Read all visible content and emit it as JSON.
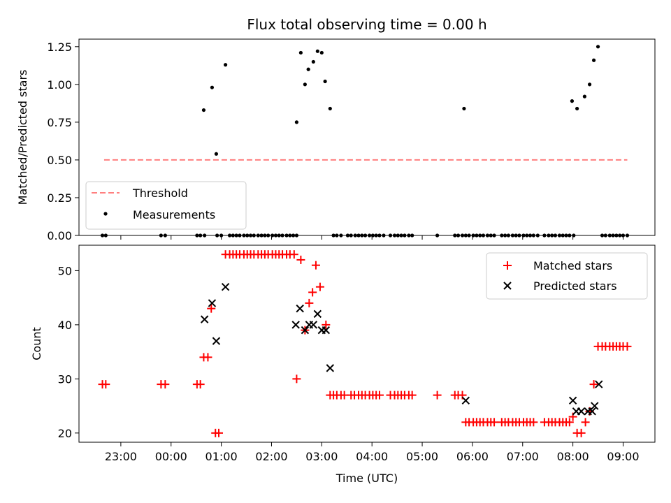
{
  "chart_data": [
    {
      "type": "scatter",
      "title": "Flux total observing time = 0.00 h",
      "xlabel": "",
      "ylabel": "Matched/Predicted stars",
      "xlim": [
        "22:10",
        "09:38"
      ],
      "ylim": [
        0.0,
        1.3
      ],
      "yticks": [
        "0.00",
        "0.25",
        "0.50",
        "0.75",
        "1.00",
        "1.25"
      ],
      "ytick_values": [
        0.0,
        0.25,
        0.5,
        0.75,
        1.0,
        1.25
      ],
      "legend_position": "lower-left",
      "threshold": {
        "name": "Threshold",
        "color": "#ff7f7f",
        "y": 0.5,
        "x": [
          "22:40",
          "09:05"
        ]
      },
      "series": [
        {
          "name": "Measurements",
          "color": "#000000",
          "points": [
            [
              "22:38",
              0.0
            ],
            [
              "22:42",
              0.0
            ],
            [
              "23:48",
              0.0
            ],
            [
              "23:53",
              0.0
            ],
            [
              "00:31",
              0.0
            ],
            [
              "00:35",
              0.0
            ],
            [
              "00:40",
              0.0
            ],
            [
              "00:39",
              0.83
            ],
            [
              "00:49",
              0.98
            ],
            [
              "00:54",
              0.54
            ],
            [
              "01:05",
              1.13
            ],
            [
              "00:55",
              0.0
            ],
            [
              "01:00",
              0.0
            ],
            [
              "01:10",
              0.0
            ],
            [
              "01:14",
              0.0
            ],
            [
              "01:18",
              0.0
            ],
            [
              "01:22",
              0.0
            ],
            [
              "01:27",
              0.0
            ],
            [
              "01:31",
              0.0
            ],
            [
              "01:35",
              0.0
            ],
            [
              "01:39",
              0.0
            ],
            [
              "01:44",
              0.0
            ],
            [
              "01:48",
              0.0
            ],
            [
              "01:52",
              0.0
            ],
            [
              "01:56",
              0.0
            ],
            [
              "02:01",
              0.0
            ],
            [
              "02:05",
              0.0
            ],
            [
              "02:09",
              0.0
            ],
            [
              "02:13",
              0.0
            ],
            [
              "02:18",
              0.0
            ],
            [
              "02:22",
              0.0
            ],
            [
              "02:26",
              0.0
            ],
            [
              "02:30",
              0.0
            ],
            [
              "02:30",
              0.75
            ],
            [
              "02:35",
              1.21
            ],
            [
              "02:40",
              1.0
            ],
            [
              "02:44",
              1.1
            ],
            [
              "02:50",
              1.15
            ],
            [
              "02:55",
              1.22
            ],
            [
              "03:00",
              1.21
            ],
            [
              "03:04",
              1.02
            ],
            [
              "03:10",
              0.84
            ],
            [
              "03:14",
              0.0
            ],
            [
              "03:18",
              0.0
            ],
            [
              "03:23",
              0.0
            ],
            [
              "03:31",
              0.0
            ],
            [
              "03:35",
              0.0
            ],
            [
              "03:40",
              0.0
            ],
            [
              "03:44",
              0.0
            ],
            [
              "03:48",
              0.0
            ],
            [
              "03:52",
              0.0
            ],
            [
              "03:57",
              0.0
            ],
            [
              "04:01",
              0.0
            ],
            [
              "04:05",
              0.0
            ],
            [
              "04:09",
              0.0
            ],
            [
              "04:14",
              0.0
            ],
            [
              "04:22",
              0.0
            ],
            [
              "04:27",
              0.0
            ],
            [
              "04:31",
              0.0
            ],
            [
              "04:35",
              0.0
            ],
            [
              "04:39",
              0.0
            ],
            [
              "04:44",
              0.0
            ],
            [
              "04:48",
              0.0
            ],
            [
              "05:18",
              0.0
            ],
            [
              "05:39",
              0.0
            ],
            [
              "05:43",
              0.0
            ],
            [
              "05:48",
              0.0
            ],
            [
              "05:50",
              0.84
            ],
            [
              "05:52",
              0.0
            ],
            [
              "05:56",
              0.0
            ],
            [
              "06:01",
              0.0
            ],
            [
              "06:05",
              0.0
            ],
            [
              "06:09",
              0.0
            ],
            [
              "06:13",
              0.0
            ],
            [
              "06:18",
              0.0
            ],
            [
              "06:22",
              0.0
            ],
            [
              "06:26",
              0.0
            ],
            [
              "06:35",
              0.0
            ],
            [
              "06:39",
              0.0
            ],
            [
              "06:43",
              0.0
            ],
            [
              "06:48",
              0.0
            ],
            [
              "06:52",
              0.0
            ],
            [
              "06:56",
              0.0
            ],
            [
              "07:01",
              0.0
            ],
            [
              "07:05",
              0.0
            ],
            [
              "07:09",
              0.0
            ],
            [
              "07:13",
              0.0
            ],
            [
              "07:18",
              0.0
            ],
            [
              "07:26",
              0.0
            ],
            [
              "07:31",
              0.0
            ],
            [
              "07:35",
              0.0
            ],
            [
              "07:39",
              0.0
            ],
            [
              "07:44",
              0.0
            ],
            [
              "07:48",
              0.0
            ],
            [
              "07:52",
              0.0
            ],
            [
              "07:56",
              0.0
            ],
            [
              "08:01",
              0.0
            ],
            [
              "07:59",
              0.89
            ],
            [
              "08:05",
              0.84
            ],
            [
              "08:14",
              0.92
            ],
            [
              "08:20",
              1.0
            ],
            [
              "08:25",
              1.16
            ],
            [
              "08:30",
              1.25
            ],
            [
              "08:35",
              0.0
            ],
            [
              "08:39",
              0.0
            ],
            [
              "08:44",
              0.0
            ],
            [
              "08:48",
              0.0
            ],
            [
              "08:52",
              0.0
            ],
            [
              "08:56",
              0.0
            ],
            [
              "09:00",
              0.0
            ],
            [
              "09:05",
              0.0
            ]
          ]
        }
      ]
    },
    {
      "type": "scatter",
      "title": "",
      "xlabel": "Time (UTC)",
      "ylabel": "Count",
      "xlim": [
        "22:10",
        "09:38"
      ],
      "ylim": [
        18.3,
        54.7
      ],
      "yticks": [
        "20",
        "30",
        "40",
        "50"
      ],
      "ytick_values": [
        20,
        30,
        40,
        50
      ],
      "xticks": [
        "23:00",
        "00:00",
        "01:00",
        "02:00",
        "03:00",
        "04:00",
        "05:00",
        "06:00",
        "07:00",
        "08:00",
        "09:00"
      ],
      "legend_position": "upper-right",
      "series": [
        {
          "name": "Matched stars",
          "color": "#ff0000",
          "marker": "plus",
          "points": [
            [
              "22:38",
              29
            ],
            [
              "22:42",
              29
            ],
            [
              "23:48",
              29
            ],
            [
              "23:53",
              29
            ],
            [
              "00:31",
              29
            ],
            [
              "00:35",
              29
            ],
            [
              "00:39",
              34
            ],
            [
              "00:44",
              34
            ],
            [
              "00:48",
              43
            ],
            [
              "00:53",
              20
            ],
            [
              "00:57",
              20
            ],
            [
              "01:05",
              53
            ],
            [
              "01:10",
              53
            ],
            [
              "01:14",
              53
            ],
            [
              "01:18",
              53
            ],
            [
              "01:22",
              53
            ],
            [
              "01:27",
              53
            ],
            [
              "01:31",
              53
            ],
            [
              "01:35",
              53
            ],
            [
              "01:39",
              53
            ],
            [
              "01:44",
              53
            ],
            [
              "01:48",
              53
            ],
            [
              "01:52",
              53
            ],
            [
              "01:56",
              53
            ],
            [
              "02:01",
              53
            ],
            [
              "02:05",
              53
            ],
            [
              "02:09",
              53
            ],
            [
              "02:13",
              53
            ],
            [
              "02:18",
              53
            ],
            [
              "02:22",
              53
            ],
            [
              "02:27",
              53
            ],
            [
              "02:30",
              30
            ],
            [
              "02:35",
              52
            ],
            [
              "02:40",
              39
            ],
            [
              "02:45",
              44
            ],
            [
              "02:49",
              46
            ],
            [
              "02:53",
              51
            ],
            [
              "02:58",
              47
            ],
            [
              "03:05",
              40
            ],
            [
              "03:10",
              27
            ],
            [
              "03:14",
              27
            ],
            [
              "03:18",
              27
            ],
            [
              "03:23",
              27
            ],
            [
              "03:27",
              27
            ],
            [
              "03:35",
              27
            ],
            [
              "03:39",
              27
            ],
            [
              "03:44",
              27
            ],
            [
              "03:48",
              27
            ],
            [
              "03:52",
              27
            ],
            [
              "03:57",
              27
            ],
            [
              "04:01",
              27
            ],
            [
              "04:05",
              27
            ],
            [
              "04:09",
              27
            ],
            [
              "04:22",
              27
            ],
            [
              "04:27",
              27
            ],
            [
              "04:31",
              27
            ],
            [
              "04:35",
              27
            ],
            [
              "04:39",
              27
            ],
            [
              "04:44",
              27
            ],
            [
              "04:48",
              27
            ],
            [
              "05:18",
              27
            ],
            [
              "05:39",
              27
            ],
            [
              "05:43",
              27
            ],
            [
              "05:48",
              27
            ],
            [
              "05:52",
              22
            ],
            [
              "05:56",
              22
            ],
            [
              "06:01",
              22
            ],
            [
              "06:05",
              22
            ],
            [
              "06:09",
              22
            ],
            [
              "06:13",
              22
            ],
            [
              "06:18",
              22
            ],
            [
              "06:22",
              22
            ],
            [
              "06:26",
              22
            ],
            [
              "06:35",
              22
            ],
            [
              "06:39",
              22
            ],
            [
              "06:43",
              22
            ],
            [
              "06:48",
              22
            ],
            [
              "06:52",
              22
            ],
            [
              "06:56",
              22
            ],
            [
              "07:01",
              22
            ],
            [
              "07:05",
              22
            ],
            [
              "07:09",
              22
            ],
            [
              "07:13",
              22
            ],
            [
              "07:26",
              22
            ],
            [
              "07:31",
              22
            ],
            [
              "07:35",
              22
            ],
            [
              "07:39",
              22
            ],
            [
              "07:44",
              22
            ],
            [
              "07:48",
              22
            ],
            [
              "07:52",
              22
            ],
            [
              "07:56",
              22
            ],
            [
              "08:00",
              23
            ],
            [
              "08:05",
              20
            ],
            [
              "08:10",
              20
            ],
            [
              "08:15",
              22
            ],
            [
              "08:20",
              24
            ],
            [
              "08:25",
              29
            ],
            [
              "08:30",
              36
            ],
            [
              "08:35",
              36
            ],
            [
              "08:39",
              36
            ],
            [
              "08:44",
              36
            ],
            [
              "08:48",
              36
            ],
            [
              "08:52",
              36
            ],
            [
              "08:56",
              36
            ],
            [
              "09:00",
              36
            ],
            [
              "09:05",
              36
            ]
          ]
        },
        {
          "name": "Predicted stars",
          "color": "#000000",
          "marker": "x",
          "points": [
            [
              "00:40",
              41
            ],
            [
              "00:49",
              44
            ],
            [
              "00:54",
              37
            ],
            [
              "01:05",
              47
            ],
            [
              "02:29",
              40
            ],
            [
              "02:34",
              43
            ],
            [
              "02:40",
              39
            ],
            [
              "02:45",
              40
            ],
            [
              "02:50",
              40
            ],
            [
              "02:55",
              42
            ],
            [
              "03:00",
              39
            ],
            [
              "03:05",
              39
            ],
            [
              "03:10",
              32
            ],
            [
              "05:52",
              26
            ],
            [
              "08:00",
              26
            ],
            [
              "08:04",
              24
            ],
            [
              "08:10",
              24
            ],
            [
              "08:18",
              24
            ],
            [
              "08:23",
              24
            ],
            [
              "08:26",
              25
            ],
            [
              "08:31",
              29
            ]
          ]
        }
      ]
    }
  ]
}
